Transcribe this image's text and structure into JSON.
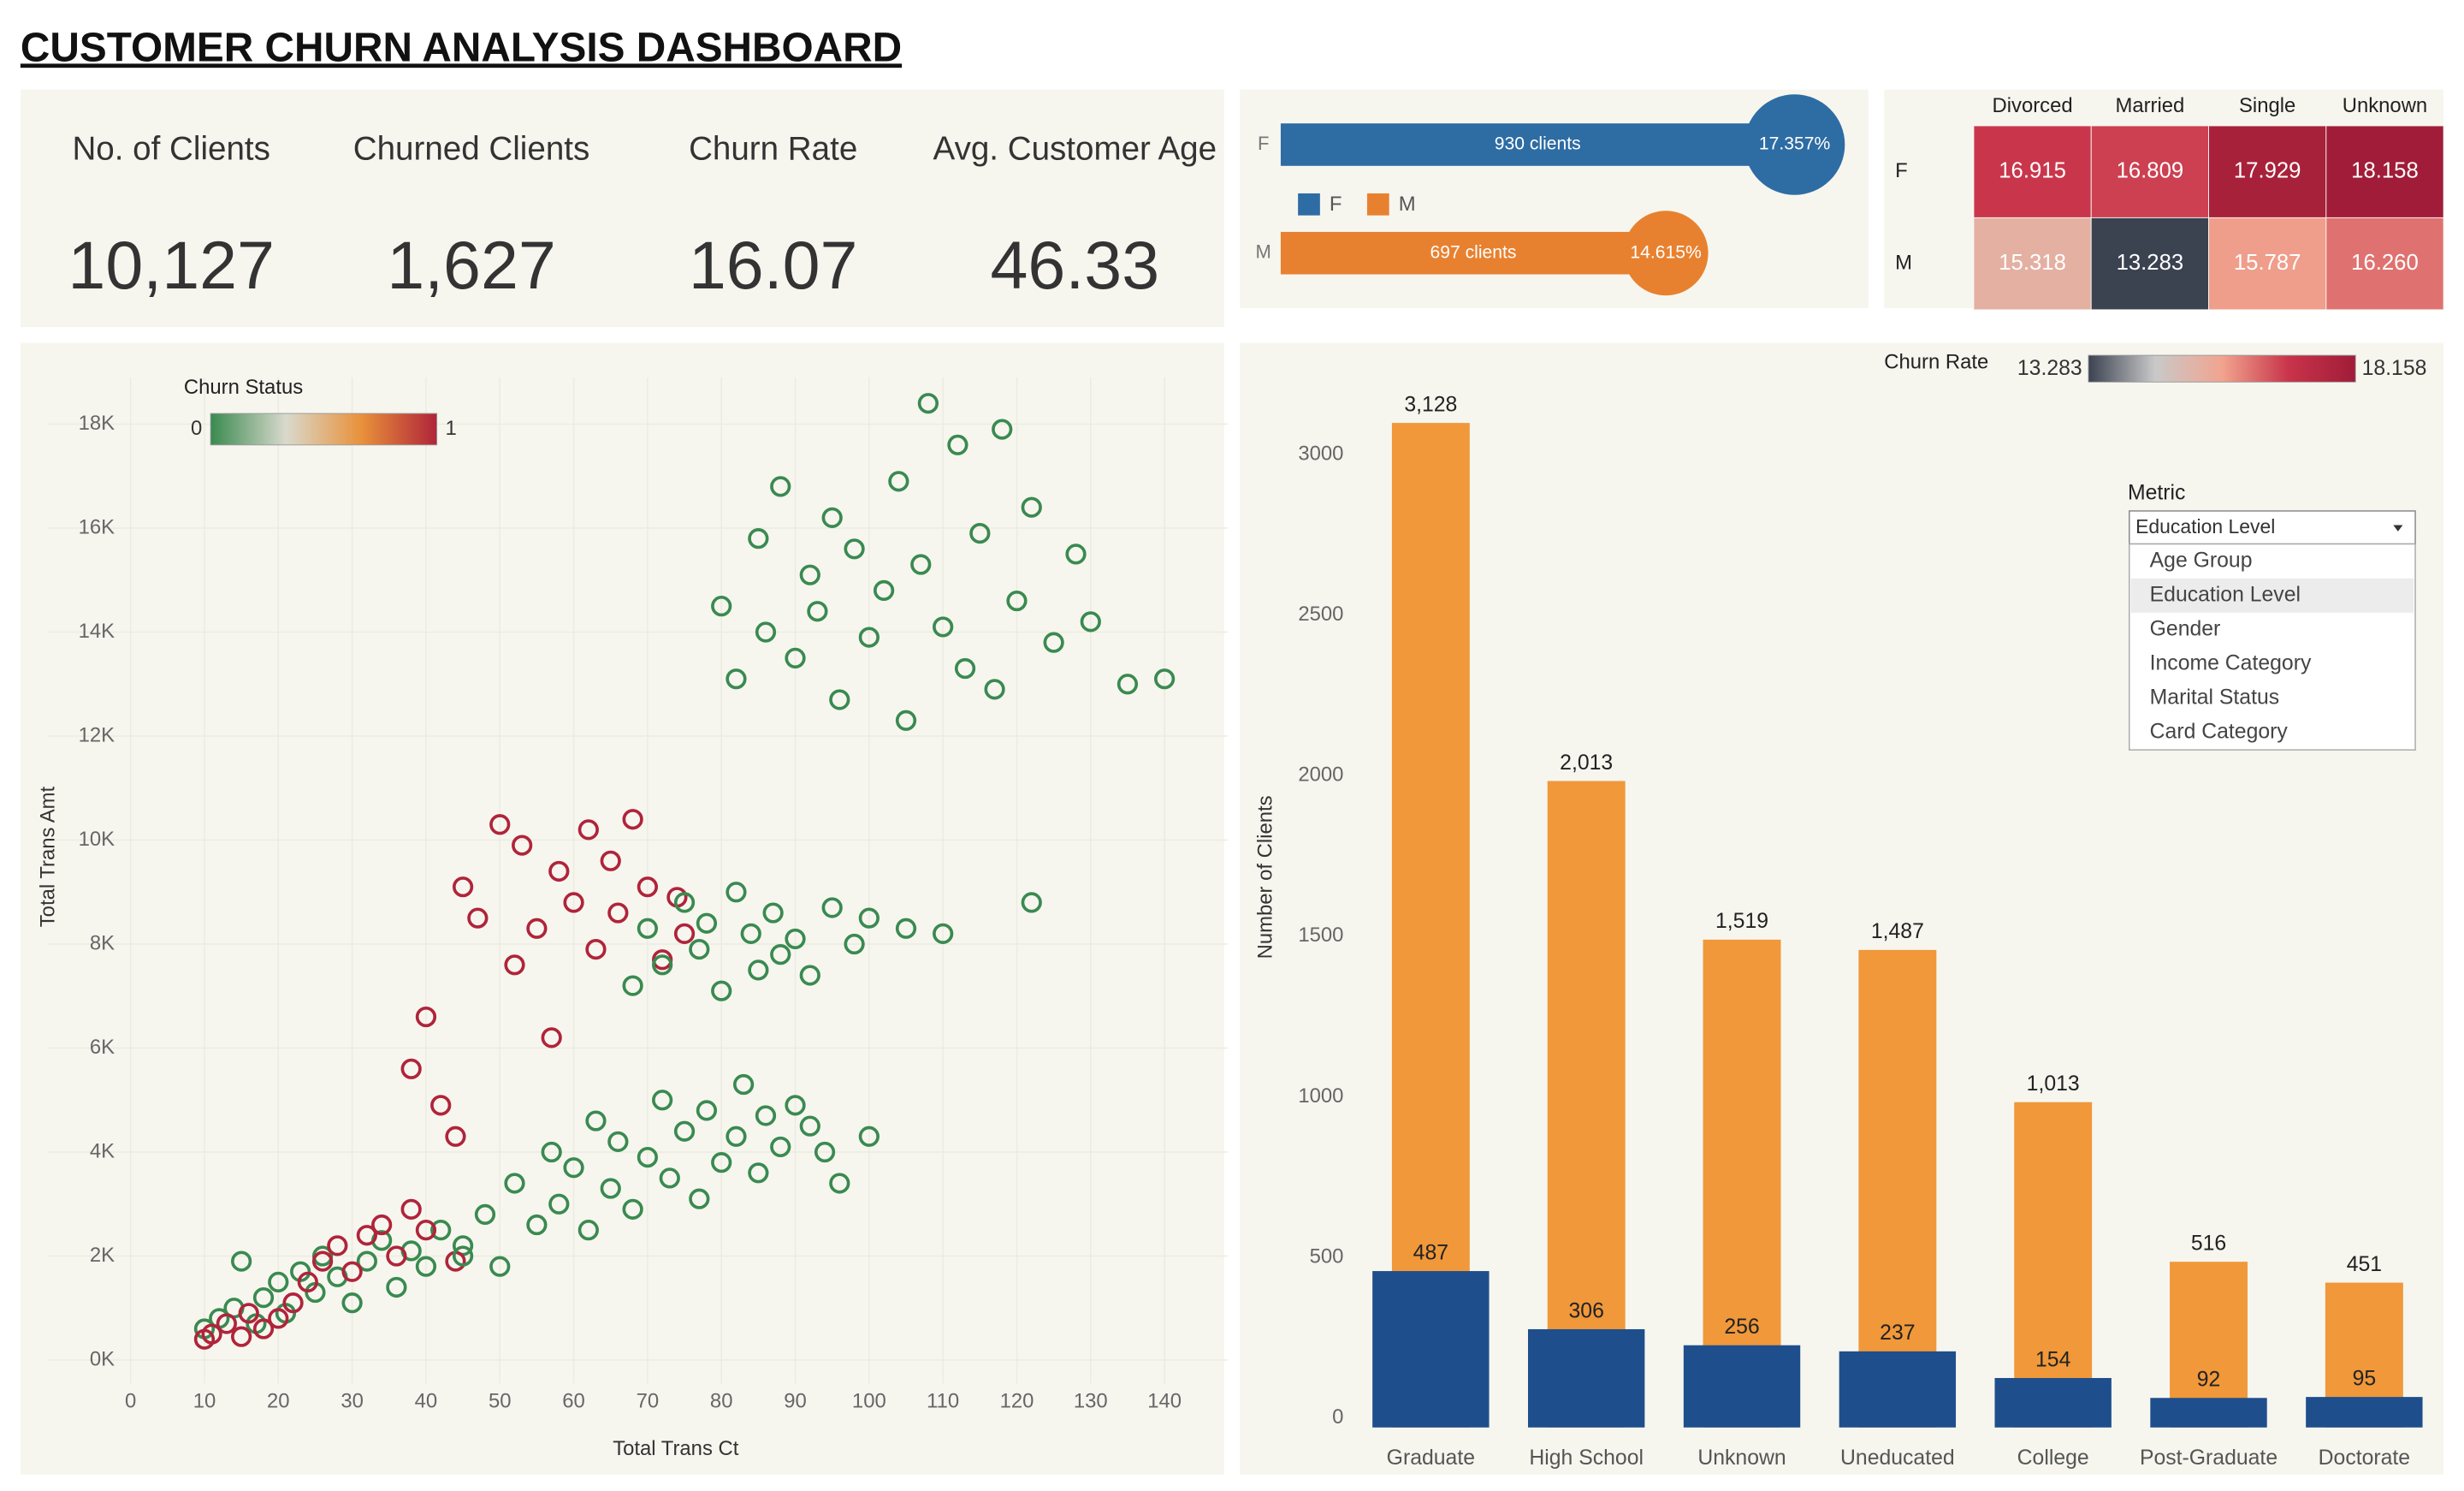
{
  "title": "CUSTOMER CHURN ANALYSIS DASHBOARD",
  "kpis": [
    {
      "label": "No. of Clients",
      "value": "10,127"
    },
    {
      "label": "Churned Clients",
      "value": "1,627"
    },
    {
      "label": "Churn Rate",
      "value": "16.07"
    },
    {
      "label": "Avg. Customer Age",
      "value": "46.33"
    }
  ],
  "metric_filter": {
    "label": "Metric",
    "selected": "Education Level",
    "options": [
      "Age Group",
      "Education Level",
      "Gender",
      "Income Category",
      "Marital Status",
      "Card Category"
    ]
  },
  "chart_data": [
    {
      "type": "bar",
      "orientation": "horizontal",
      "categories": [
        "F",
        "M"
      ],
      "colors": [
        "#2e6ca4",
        "#e8812f"
      ],
      "values": [
        930,
        697
      ],
      "value_labels": [
        "930 clients",
        "697 clients"
      ],
      "churn_rate": [
        17.357,
        14.615
      ],
      "churn_rate_labels": [
        "17.357%",
        "14.615%"
      ]
    },
    {
      "type": "heatmap",
      "x_categories": [
        "Divorced",
        "Married",
        "Single",
        "Unknown"
      ],
      "y_categories": [
        "F",
        "M"
      ],
      "values": [
        [
          16.915,
          16.809,
          17.929,
          18.158
        ],
        [
          15.318,
          13.283,
          15.787,
          16.26
        ]
      ],
      "value_labels": [
        [
          "16.915",
          "16.809",
          "17.929",
          "18.158"
        ],
        [
          "15.318",
          "13.283",
          "15.787",
          "16.260"
        ]
      ],
      "colorbar": {
        "title": "Churn Rate",
        "range": [
          13.283,
          18.158
        ],
        "colors": [
          "#3b4250",
          "#c9c9c9",
          "#f1a48f",
          "#c8344a",
          "#a01c38"
        ]
      }
    },
    {
      "type": "scatter",
      "xlabel": "Total Trans Ct",
      "ylabel": "Total Trans Amt",
      "xlim": [
        -11.3,
        148.5
      ],
      "ylim": [
        -450,
        18900
      ],
      "xticks": [
        0,
        10,
        20,
        30,
        40,
        50,
        60,
        70,
        80,
        90,
        100,
        110,
        120,
        130,
        140
      ],
      "yticks": [
        {
          "value": 0,
          "label": "0K"
        },
        {
          "value": 2000,
          "label": "2K"
        },
        {
          "value": 4000,
          "label": "4K"
        },
        {
          "value": 6000,
          "label": "6K"
        },
        {
          "value": 8000,
          "label": "8K"
        },
        {
          "value": 10000,
          "label": "10K"
        },
        {
          "value": 12000,
          "label": "12K"
        },
        {
          "value": 14000,
          "label": "14K"
        },
        {
          "value": 16000,
          "label": "16K"
        },
        {
          "value": 18000,
          "label": "18K"
        }
      ],
      "grid": true,
      "color_scale": {
        "title": "Churn Status",
        "range": [
          0,
          1
        ],
        "colors": [
          "#3a8a50",
          "#d9d9cc",
          "#e8913a",
          "#b0243a"
        ]
      },
      "x": [
        10,
        12,
        14,
        15,
        17,
        18,
        20,
        21,
        23,
        25,
        26,
        28,
        30,
        32,
        34,
        36,
        38,
        40,
        42,
        45,
        10,
        11,
        13,
        15,
        16,
        18,
        20,
        22,
        24,
        26,
        28,
        30,
        32,
        34,
        36,
        38,
        40,
        44,
        45,
        48,
        50,
        52,
        55,
        57,
        58,
        60,
        62,
        63,
        65,
        66,
        68,
        70,
        72,
        73,
        75,
        77,
        78,
        80,
        82,
        83,
        85,
        86,
        88,
        90,
        92,
        94,
        96,
        100,
        38,
        40,
        42,
        44,
        45,
        47,
        50,
        52,
        53,
        55,
        57,
        58,
        60,
        62,
        63,
        65,
        66,
        68,
        70,
        72,
        74,
        75,
        68,
        70,
        72,
        75,
        77,
        78,
        80,
        82,
        84,
        85,
        87,
        88,
        90,
        92,
        95,
        98,
        100,
        105,
        110,
        122,
        80,
        82,
        85,
        86,
        88,
        90,
        92,
        93,
        95,
        96,
        98,
        100,
        102,
        104,
        105,
        107,
        108,
        110,
        112,
        113,
        115,
        117,
        118,
        120,
        122,
        125,
        128,
        130,
        135,
        140
      ],
      "y": [
        600,
        800,
        1000,
        1900,
        700,
        1200,
        1500,
        900,
        1700,
        1300,
        2000,
        1600,
        1100,
        1900,
        2300,
        1400,
        2100,
        1800,
        2500,
        2200,
        400,
        500,
        700,
        450,
        900,
        600,
        800,
        1100,
        1500,
        1900,
        2200,
        1700,
        2400,
        2600,
        2000,
        2900,
        2500,
        1900,
        2000,
        2800,
        1800,
        3400,
        2600,
        4000,
        3000,
        3700,
        2500,
        4600,
        3300,
        4200,
        2900,
        3900,
        5000,
        3500,
        4400,
        3100,
        4800,
        3800,
        4300,
        5300,
        3600,
        4700,
        4100,
        4900,
        4500,
        4000,
        3400,
        4300,
        5600,
        6600,
        4900,
        4300,
        9100,
        8500,
        10300,
        7600,
        9900,
        8300,
        6200,
        9400,
        8800,
        10200,
        7900,
        9600,
        8600,
        10400,
        9100,
        7700,
        8900,
        8200,
        7200,
        8300,
        7600,
        8800,
        7900,
        8400,
        7100,
        9000,
        8200,
        7500,
        8600,
        7800,
        8100,
        7400,
        8700,
        8000,
        8500,
        8300,
        8200,
        8800,
        14500,
        13100,
        15800,
        14000,
        16800,
        13500,
        15100,
        14400,
        16200,
        12700,
        15600,
        13900,
        14800,
        16900,
        12300,
        15300,
        18400,
        14100,
        17600,
        13300,
        15900,
        12900,
        17900,
        14600,
        16400,
        13800,
        15500,
        14200,
        13000,
        13100
      ],
      "churn_status": [
        0,
        0,
        0,
        0,
        0,
        0,
        0,
        0,
        0,
        0,
        0,
        0,
        0,
        0,
        0,
        0,
        0,
        0,
        0,
        0,
        1,
        1,
        1,
        1,
        1,
        1,
        1,
        1,
        1,
        1,
        1,
        1,
        1,
        1,
        1,
        1,
        1,
        1,
        0,
        0,
        0,
        0,
        0,
        0,
        0,
        0,
        0,
        0,
        0,
        0,
        0,
        0,
        0,
        0,
        0,
        0,
        0,
        0,
        0,
        0,
        0,
        0,
        0,
        0,
        0,
        0,
        0,
        0,
        1,
        1,
        1,
        1,
        1,
        1,
        1,
        1,
        1,
        1,
        1,
        1,
        1,
        1,
        1,
        1,
        1,
        1,
        1,
        1,
        1,
        1,
        0,
        0,
        0,
        0,
        0,
        0,
        0,
        0,
        0,
        0,
        0,
        0,
        0,
        0,
        0,
        0,
        0,
        0,
        0,
        0,
        0,
        0,
        0,
        0,
        0,
        0,
        0,
        0,
        0,
        0,
        0,
        0,
        0,
        0,
        0,
        0,
        0,
        0,
        0,
        0,
        0,
        0,
        0,
        0,
        0,
        0,
        0,
        0,
        0,
        0
      ]
    },
    {
      "type": "bar",
      "orientation": "vertical",
      "ylabel": "Number of Clients",
      "categories": [
        "Graduate",
        "High School",
        "Unknown",
        "Uneducated",
        "College",
        "Post-Graduate",
        "Doctorate"
      ],
      "ylim": [
        0,
        3270
      ],
      "yticks": [
        0,
        500,
        1000,
        1500,
        2000,
        2500,
        3000
      ],
      "series": [
        {
          "color": "#f0983a",
          "values": [
            3128,
            2013,
            1519,
            1487,
            1013,
            516,
            451
          ],
          "value_labels": [
            "3,128",
            "2,013",
            "1,519",
            "1,487",
            "1,013",
            "516",
            "451"
          ]
        },
        {
          "color": "#1f4e8c",
          "values": [
            487,
            306,
            256,
            237,
            154,
            92,
            95
          ]
        }
      ]
    }
  ]
}
